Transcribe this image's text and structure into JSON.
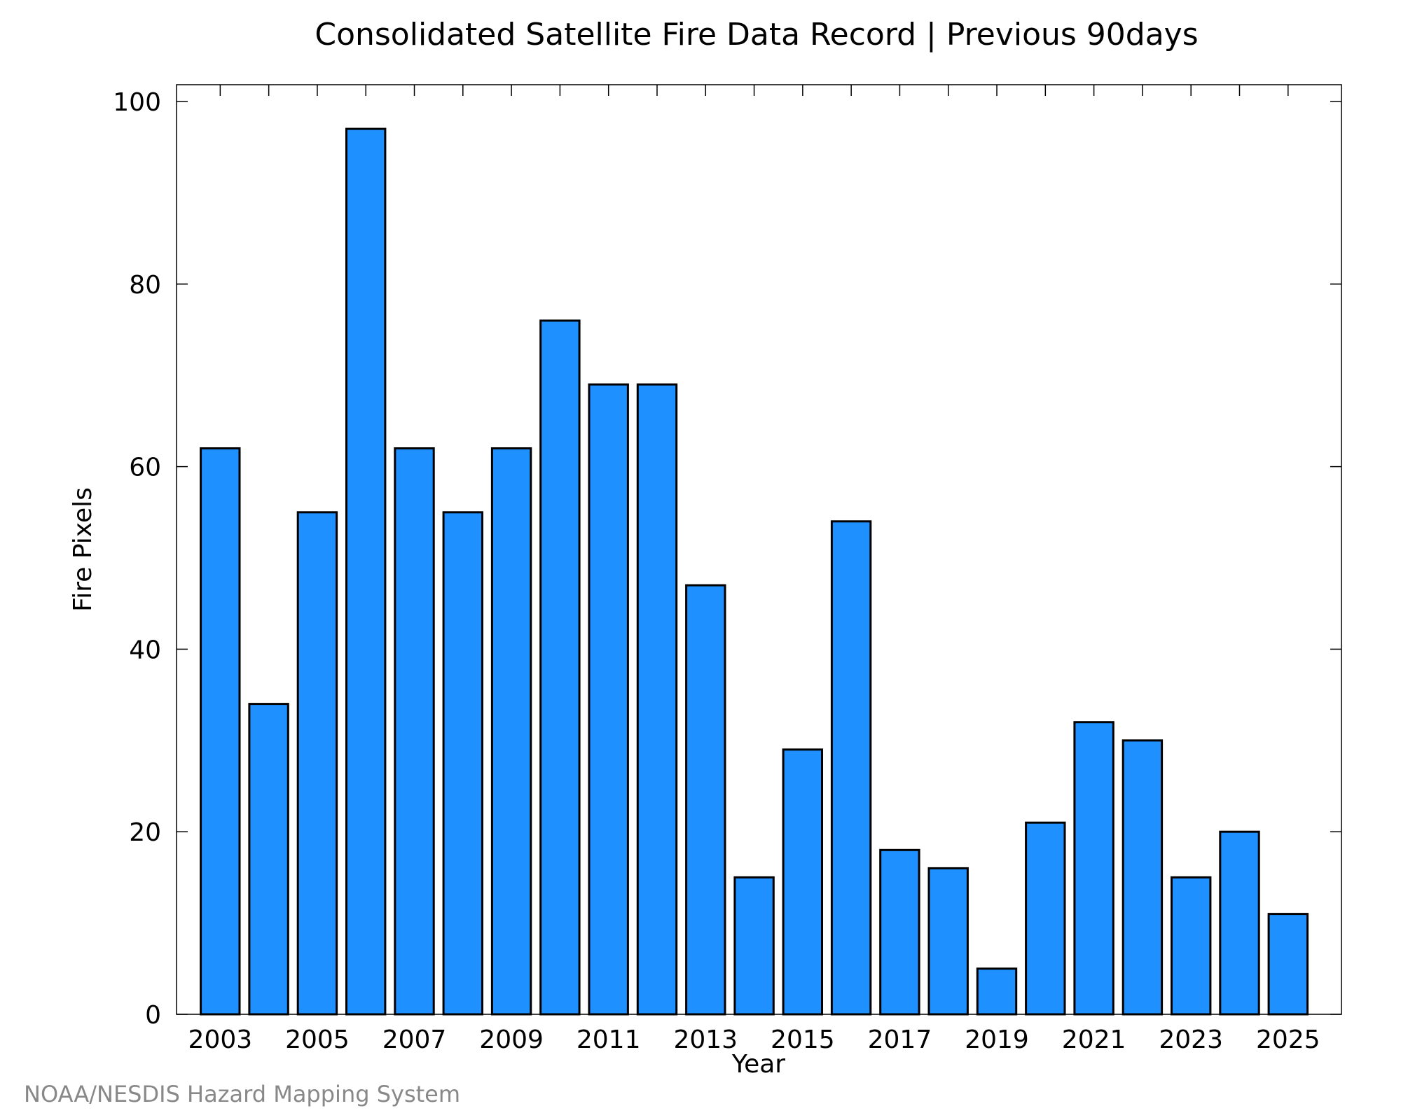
{
  "chart_data": {
    "type": "bar",
    "title": "Consolidated Satellite Fire Data Record | Previous 90days",
    "xlabel": "Year",
    "ylabel": "Fire Pixels",
    "categories": [
      2003,
      2004,
      2005,
      2006,
      2007,
      2008,
      2009,
      2010,
      2011,
      2012,
      2013,
      2014,
      2015,
      2016,
      2017,
      2018,
      2019,
      2020,
      2021,
      2022,
      2023,
      2024,
      2025
    ],
    "values": [
      62,
      34,
      55,
      97,
      62,
      55,
      62,
      76,
      69,
      69,
      47,
      15,
      29,
      54,
      18,
      16,
      5,
      21,
      32,
      30,
      15,
      20,
      11
    ],
    "x_tick_labels": [
      "2003",
      "2005",
      "2007",
      "2009",
      "2011",
      "2013",
      "2015",
      "2017",
      "2019",
      "2021",
      "2023",
      "2025"
    ],
    "y_tick_labels": [
      "0",
      "20",
      "40",
      "60",
      "80",
      "100"
    ],
    "y_ticks": [
      0,
      20,
      40,
      60,
      80,
      100
    ],
    "ylim": [
      0,
      100
    ],
    "xlim": [
      2002.1,
      2026.1
    ],
    "grid": false,
    "bar_color": "#1e90ff",
    "edge_color": "#000000",
    "credit": "NOAA/NESDIS Hazard Mapping System"
  }
}
